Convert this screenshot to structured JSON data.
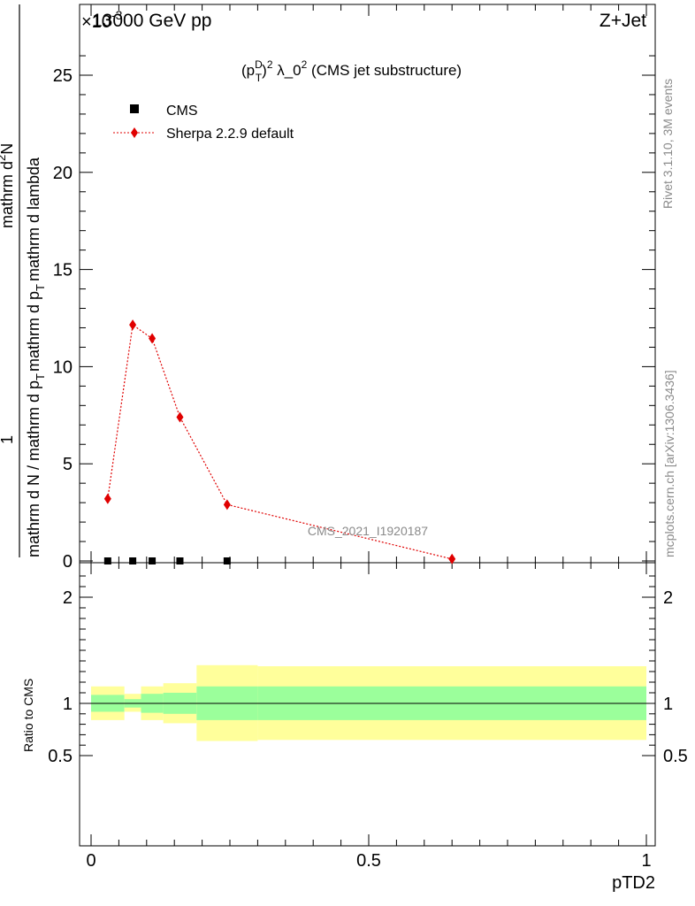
{
  "header": {
    "left": "13000 GeV pp",
    "right": "Z+Jet",
    "exponent": "×10",
    "exponent_power": "-3"
  },
  "plot_title": "(p_T^D)^2 λ_0^2 (CMS jet substructure)",
  "plot_title_parts": {
    "p": "(p",
    "sub": "T",
    "sup": "D",
    "close": ")",
    "sq": "2",
    "lambda": " λ_0",
    "sq2": "2",
    "rest": " (CMS jet substructure)"
  },
  "legend": {
    "cms_label": "CMS",
    "mc_label": "Sherpa 2.2.9 default"
  },
  "side_text": {
    "rivet": "Rivet 3.1.10,  3M events",
    "mcplots": "mcplots.cern.ch [arXiv:1306.3436]"
  },
  "watermark": "CMS_2021_I1920187",
  "y_label": {
    "top": "1",
    "numerator": "mathrm d",
    "numerator_sup": "2",
    "numerator_end": "N",
    "denominator": "mathrm d N / mathrm d p",
    "denominator_sub": "T",
    "denominator_end": "mathrm d p",
    "denominator_sub2": "T",
    "denominator_tail": "mathrm d lambda"
  },
  "ratio_ylabel": "Ratio to CMS",
  "xlabel": "pTD2",
  "colors": {
    "mc": "#e00000",
    "band_inner": "#9bff9b",
    "band_outer": "#ffff9b",
    "data": "#000000"
  },
  "chart_data": {
    "type": "line",
    "main": {
      "xlim": [
        0,
        1
      ],
      "ylim": [
        0,
        27.3
      ],
      "y_scale_note": "×10^-3",
      "y_ticks": [
        0,
        5,
        10,
        15,
        20,
        25
      ],
      "y_tick_labels": [
        "0",
        "5",
        "10",
        "15",
        "20",
        "25"
      ],
      "series": [
        {
          "name": "Sherpa 2.2.9 default",
          "x": [
            0.03,
            0.075,
            0.11,
            0.16,
            0.245,
            0.65
          ],
          "y": [
            3.2,
            12.15,
            11.45,
            7.4,
            2.9,
            0.1
          ]
        },
        {
          "name": "CMS",
          "x": [
            0.03,
            0.075,
            0.11,
            0.16,
            0.245,
            0.65
          ],
          "y": [
            0,
            0,
            0,
            0,
            0,
            0
          ]
        }
      ]
    },
    "ratio": {
      "xlim": [
        0,
        1
      ],
      "ylim": [
        0.3,
        2.3
      ],
      "y_ticks": [
        0.5,
        1,
        2
      ],
      "y_tick_labels": [
        "0.5",
        "1",
        "2"
      ],
      "x_ticks": [
        0,
        0.5,
        1
      ],
      "x_tick_labels": [
        "0",
        "0.5",
        "1"
      ],
      "bins": [
        {
          "lo": 0.0,
          "hi": 0.06,
          "inner": [
            0.92,
            1.08
          ],
          "outer": [
            0.84,
            1.16
          ]
        },
        {
          "lo": 0.06,
          "hi": 0.09,
          "inner": [
            0.96,
            1.04
          ],
          "outer": [
            0.92,
            1.09
          ]
        },
        {
          "lo": 0.09,
          "hi": 0.13,
          "inner": [
            0.91,
            1.09
          ],
          "outer": [
            0.84,
            1.16
          ]
        },
        {
          "lo": 0.13,
          "hi": 0.19,
          "inner": [
            0.9,
            1.1
          ],
          "outer": [
            0.81,
            1.19
          ]
        },
        {
          "lo": 0.19,
          "hi": 0.3,
          "inner": [
            0.84,
            1.16
          ],
          "outer": [
            0.64,
            1.36
          ]
        },
        {
          "lo": 0.3,
          "hi": 1.0,
          "inner": [
            0.84,
            1.16
          ],
          "outer": [
            0.65,
            1.35
          ]
        }
      ]
    }
  }
}
